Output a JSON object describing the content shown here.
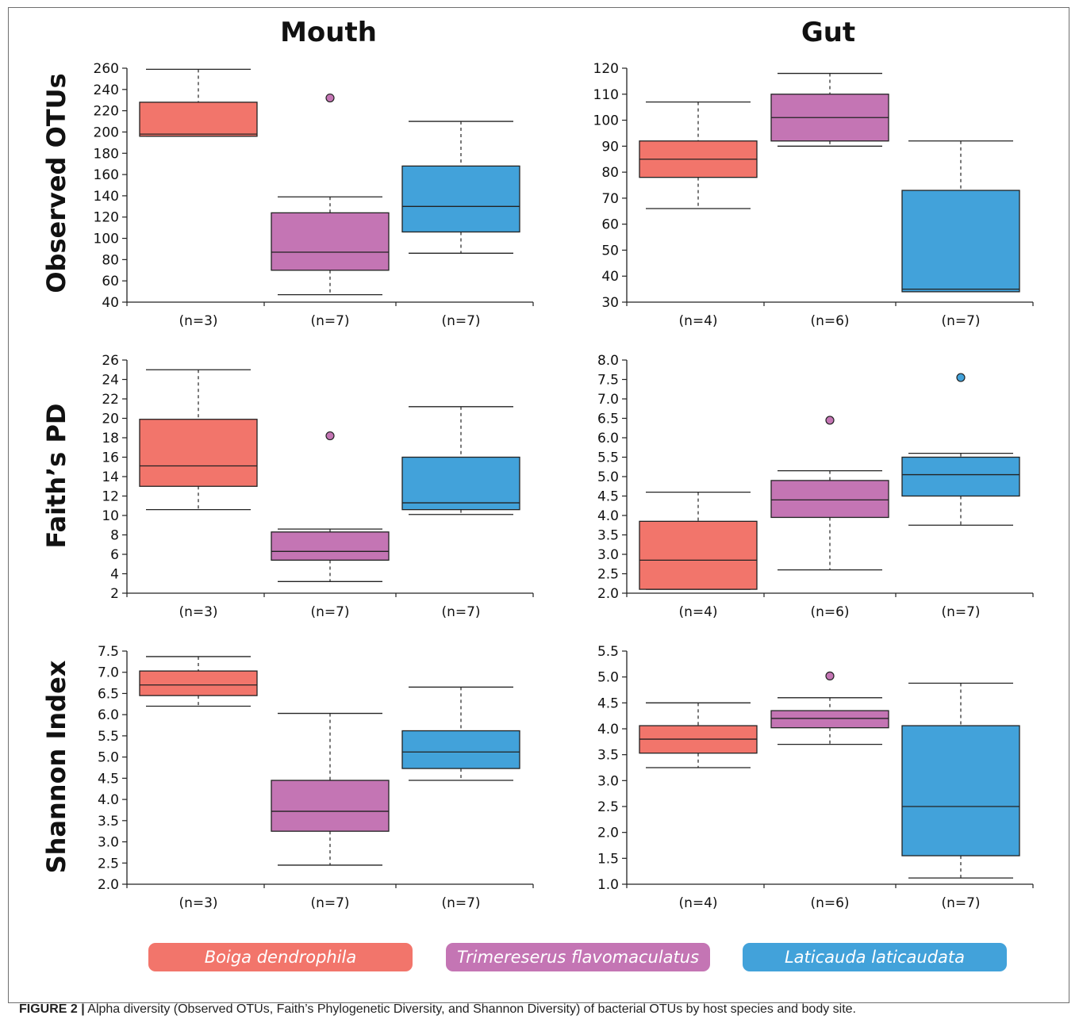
{
  "figure": {
    "caption_label": "FIGURE 2 |",
    "caption_text": " Alpha diversity (Observed OTUs, Faith’s Phylogenetic Diversity, and Shannon Diversity) of bacterial OTUs by host species and body site."
  },
  "columns": [
    "Mouth",
    "Gut"
  ],
  "rows": [
    "Observed OTUs",
    "Faith’s PD",
    "Shannon Index"
  ],
  "legend": [
    {
      "label": "Boiga dendrophila",
      "color": "#f2756b"
    },
    {
      "label": "Trimereserus flavomaculatus",
      "color": "#c475b4"
    },
    {
      "label": "Laticauda laticaudata",
      "color": "#42a2da"
    }
  ],
  "chart_data": [
    {
      "type": "box",
      "row": "Observed OTUs",
      "column": "Mouth",
      "ylim": [
        40,
        260
      ],
      "yticks": [
        "40",
        "60",
        "80",
        "100",
        "120",
        "140",
        "160",
        "180",
        "200",
        "220",
        "240",
        "260"
      ],
      "categories": [
        "(n=3)",
        "(n=7)",
        "(n=7)"
      ],
      "series": [
        {
          "name": "Boiga dendrophila",
          "min": 196,
          "q1": 196,
          "median": 198,
          "q3": 228,
          "max": 259,
          "outliers": []
        },
        {
          "name": "Trimereserus flavomaculatus",
          "min": 47,
          "q1": 70,
          "median": 87,
          "q3": 124,
          "max": 139,
          "outliers": [
            232
          ]
        },
        {
          "name": "Laticauda laticaudata",
          "min": 86,
          "q1": 106,
          "median": 130,
          "q3": 168,
          "max": 210,
          "outliers": []
        }
      ]
    },
    {
      "type": "box",
      "row": "Observed OTUs",
      "column": "Gut",
      "ylim": [
        30,
        120
      ],
      "yticks": [
        "30",
        "40",
        "50",
        "60",
        "70",
        "80",
        "90",
        "100",
        "110",
        "120"
      ],
      "categories": [
        "(n=4)",
        "(n=6)",
        "(n=7)"
      ],
      "series": [
        {
          "name": "Boiga dendrophila",
          "min": 66,
          "q1": 78,
          "median": 85,
          "q3": 92,
          "max": 107,
          "outliers": []
        },
        {
          "name": "Trimereserus flavomaculatus",
          "min": 90,
          "q1": 92,
          "median": 101,
          "q3": 110,
          "max": 118,
          "outliers": []
        },
        {
          "name": "Laticauda laticaudata",
          "min": 34,
          "q1": 34,
          "median": 35,
          "q3": 73,
          "max": 92,
          "outliers": []
        }
      ]
    },
    {
      "type": "box",
      "row": "Faith’s PD",
      "column": "Mouth",
      "ylim": [
        2,
        26
      ],
      "yticks": [
        "2",
        "4",
        "6",
        "8",
        "10",
        "12",
        "14",
        "16",
        "18",
        "20",
        "22",
        "24",
        "26"
      ],
      "categories": [
        "(n=3)",
        "(n=7)",
        "(n=7)"
      ],
      "series": [
        {
          "name": "Boiga dendrophila",
          "min": 10.6,
          "q1": 13,
          "median": 15.1,
          "q3": 19.9,
          "max": 25,
          "outliers": []
        },
        {
          "name": "Trimereserus flavomaculatus",
          "min": 3.2,
          "q1": 5.4,
          "median": 6.3,
          "q3": 8.3,
          "max": 8.6,
          "outliers": [
            18.2
          ]
        },
        {
          "name": "Laticauda laticaudata",
          "min": 10.1,
          "q1": 10.6,
          "median": 11.3,
          "q3": 16,
          "max": 21.2,
          "outliers": []
        }
      ]
    },
    {
      "type": "box",
      "row": "Faith’s PD",
      "column": "Gut",
      "ylim": [
        2,
        8
      ],
      "yticks": [
        "2.0",
        "2.5",
        "3.0",
        "3.5",
        "4.0",
        "4.5",
        "5.0",
        "5.5",
        "6.0",
        "6.5",
        "7.0",
        "7.5",
        "8.0"
      ],
      "categories": [
        "(n=4)",
        "(n=6)",
        "(n=7)"
      ],
      "series": [
        {
          "name": "Boiga dendrophila",
          "min": 2.1,
          "q1": 2.1,
          "median": 2.85,
          "q3": 3.85,
          "max": 4.6,
          "outliers": []
        },
        {
          "name": "Trimereserus flavomaculatus",
          "min": 2.6,
          "q1": 3.95,
          "median": 4.4,
          "q3": 4.9,
          "max": 5.15,
          "outliers": [
            6.45
          ]
        },
        {
          "name": "Laticauda laticaudata",
          "min": 3.75,
          "q1": 4.5,
          "median": 5.05,
          "q3": 5.5,
          "max": 5.6,
          "outliers": [
            7.55
          ]
        }
      ]
    },
    {
      "type": "box",
      "row": "Shannon Index",
      "column": "Mouth",
      "ylim": [
        2,
        7.5
      ],
      "yticks": [
        "2.0",
        "2.5",
        "3.0",
        "3.5",
        "4.0",
        "4.5",
        "5.0",
        "5.5",
        "6.0",
        "6.5",
        "7.0",
        "7.5"
      ],
      "categories": [
        "(n=3)",
        "(n=7)",
        "(n=7)"
      ],
      "series": [
        {
          "name": "Boiga dendrophila",
          "min": 6.2,
          "q1": 6.45,
          "median": 6.7,
          "q3": 7.03,
          "max": 7.37,
          "outliers": []
        },
        {
          "name": "Trimereserus flavomaculatus",
          "min": 2.45,
          "q1": 3.25,
          "median": 3.72,
          "q3": 4.45,
          "max": 6.03,
          "outliers": []
        },
        {
          "name": "Laticauda laticaudata",
          "min": 4.45,
          "q1": 4.73,
          "median": 5.12,
          "q3": 5.62,
          "max": 6.65,
          "outliers": []
        }
      ]
    },
    {
      "type": "box",
      "row": "Shannon Index",
      "column": "Gut",
      "ylim": [
        1,
        5.5
      ],
      "yticks": [
        "1.0",
        "1.5",
        "2.0",
        "2.5",
        "3.0",
        "3.5",
        "4.0",
        "4.5",
        "5.0",
        "5.5"
      ],
      "categories": [
        "(n=4)",
        "(n=6)",
        "(n=7)"
      ],
      "series": [
        {
          "name": "Boiga dendrophila",
          "min": 3.25,
          "q1": 3.53,
          "median": 3.8,
          "q3": 4.06,
          "max": 4.5,
          "outliers": []
        },
        {
          "name": "Trimereserus flavomaculatus",
          "min": 3.7,
          "q1": 4.02,
          "median": 4.2,
          "q3": 4.35,
          "max": 4.6,
          "outliers": [
            5.02
          ]
        },
        {
          "name": "Laticauda laticaudata",
          "min": 1.12,
          "q1": 1.55,
          "median": 2.5,
          "q3": 4.06,
          "max": 4.88,
          "outliers": []
        }
      ]
    }
  ]
}
